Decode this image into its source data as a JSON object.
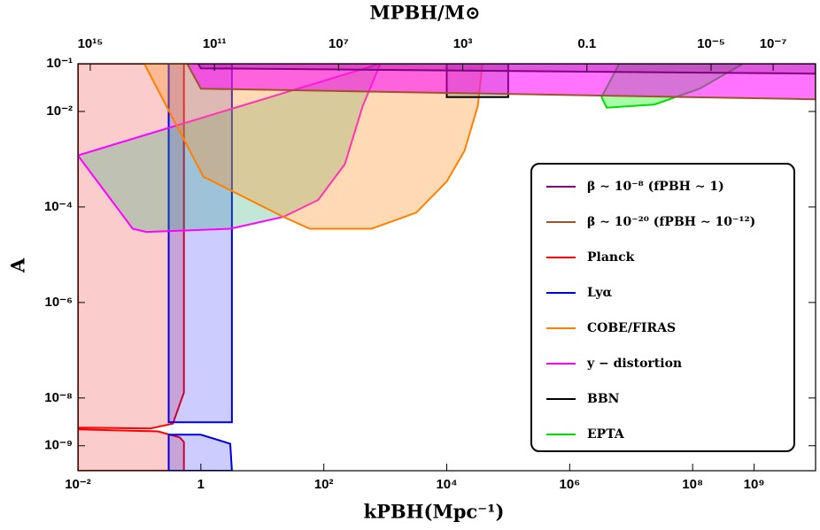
{
  "chart_data": {
    "type": "area",
    "title": "MPBH/M⊙",
    "x_label": "kPBH(Mpc⁻¹)",
    "y_label": "A",
    "log_x": true,
    "log_y": true,
    "xlim": [
      0.01,
      10000000000
    ],
    "ylim": [
      0.1,
      3e-10
    ],
    "x2lim": [
      2500000000000000,
      4.3e-09
    ],
    "xticks": [
      {
        "value": 0.01,
        "label": "10⁻²"
      },
      1,
      {
        "value": 100,
        "label": "10²"
      },
      {
        "value": 10000,
        "label": "10⁴"
      },
      {
        "value": 1000000,
        "label": "10⁶"
      },
      {
        "value": 100000000,
        "label": "10⁸"
      },
      {
        "value": 1000000000,
        "label": "10⁹"
      }
    ],
    "yticks": [
      {
        "value": 0.1,
        "label": "10⁻¹"
      },
      {
        "value": 0.01,
        "label": "10⁻²"
      },
      {
        "value": 0.0001,
        "label": "10⁻⁴"
      },
      {
        "value": 1e-06,
        "label": "10⁻⁶"
      },
      {
        "value": 1e-08,
        "label": "10⁻⁸"
      },
      {
        "value": 1e-09,
        "label": "10⁻⁹"
      }
    ],
    "x2ticks": [
      {
        "value": 1000000000000000,
        "label": "10¹⁵"
      },
      {
        "value": 100000000000,
        "label": "10¹¹"
      },
      {
        "value": 10000000,
        "label": "10⁷"
      },
      {
        "value": 1000,
        "label": "10³"
      },
      0.1,
      {
        "value": 1e-05,
        "label": "10⁻⁵"
      },
      {
        "value": 1e-07,
        "label": "10⁻⁷"
      }
    ],
    "legend": "right",
    "series": [
      {
        "name": "β ∼ 10⁻⁸ (fPBH ∼ 1)",
        "color": "#800080",
        "fill": "rgba(128,0,128,0.25)",
        "draw_order": 7,
        "x": [
          0.9,
          1.0,
          10000000000,
          10000000000
        ],
        "y": [
          0.1,
          0.08,
          0.062,
          0.1
        ]
      },
      {
        "name": "β ∼ 10⁻²⁰ (fPBH ∼ 10⁻¹²)",
        "color": "#a0522d",
        "fill": "rgba(255,0,255,0.55)",
        "draw_order": 6,
        "x": [
          0.6,
          1.0,
          10000000000,
          10000000000
        ],
        "y": [
          0.1,
          0.03,
          0.018,
          0.1
        ]
      },
      {
        "name": "Planck",
        "color": "#ff0000",
        "fill": "rgba(240,110,110,0.35)",
        "draw_order": 0,
        "x": [
          0.01,
          0.53,
          0.53,
          0.35,
          0.15,
          0.01,
          null,
          0.01,
          0.2,
          0.45,
          0.53,
          0.53,
          0.01
        ],
        "y": [
          0.1,
          0.1,
          1.3e-08,
          2.9e-09,
          2.3e-09,
          2.4e-09,
          null,
          2.2e-09,
          2e-09,
          1.5e-09,
          1.2e-09,
          3e-10,
          3e-10
        ]
      },
      {
        "name": "Lyα",
        "color": "#0000dd",
        "fill": "rgba(0,0,255,0.2)",
        "draw_order": 1,
        "x": [
          0.3,
          3.2,
          3.2,
          0.3,
          null,
          0.3,
          1,
          3,
          3.2,
          0.3
        ],
        "y": [
          0.1,
          0.1,
          3.1e-09,
          3.1e-09,
          null,
          1.7e-09,
          1.7e-09,
          1.1e-09,
          3e-10,
          3e-10
        ]
      },
      {
        "name": "COBE/FIRAS",
        "color": "#ff8000",
        "fill": "rgba(255,150,40,0.35)",
        "draw_order": 3,
        "x": [
          0.12,
          1.1,
          22,
          59,
          600,
          3200,
          10000,
          19500,
          32000,
          38000
        ],
        "y": [
          0.1,
          0.00043,
          6.2e-05,
          3.5e-05,
          3.5e-05,
          7.6e-05,
          0.00034,
          0.0015,
          0.013,
          0.1
        ]
      },
      {
        "name": "y − distortion",
        "color": "#ff00ff",
        "fill": "rgba(40,170,110,0.28)",
        "draw_order": 2,
        "x": [
          0.01,
          0.078,
          0.13,
          3,
          22,
          81,
          220,
          430,
          830
        ],
        "y": [
          0.0012,
          3.5e-05,
          3e-05,
          3.5e-05,
          6.2e-05,
          0.00014,
          0.00079,
          0.013,
          0.1
        ]
      },
      {
        "name": "BBN",
        "color": "#000000",
        "fill": "rgba(128,128,128,0.35)",
        "draw_order": 4,
        "x": [
          10000,
          100000,
          100000,
          10000
        ],
        "y": [
          0.1,
          0.1,
          0.02,
          0.02
        ]
      },
      {
        "name": "EPTA",
        "color": "#00dd00",
        "fill": "rgba(0,255,0,0.35)",
        "draw_order": 5,
        "x": [
          6400000,
          3300000,
          4000000,
          24000000,
          130000000,
          660000000
        ],
        "y": [
          0.1,
          0.02,
          0.012,
          0.014,
          0.03,
          0.1
        ]
      }
    ]
  }
}
